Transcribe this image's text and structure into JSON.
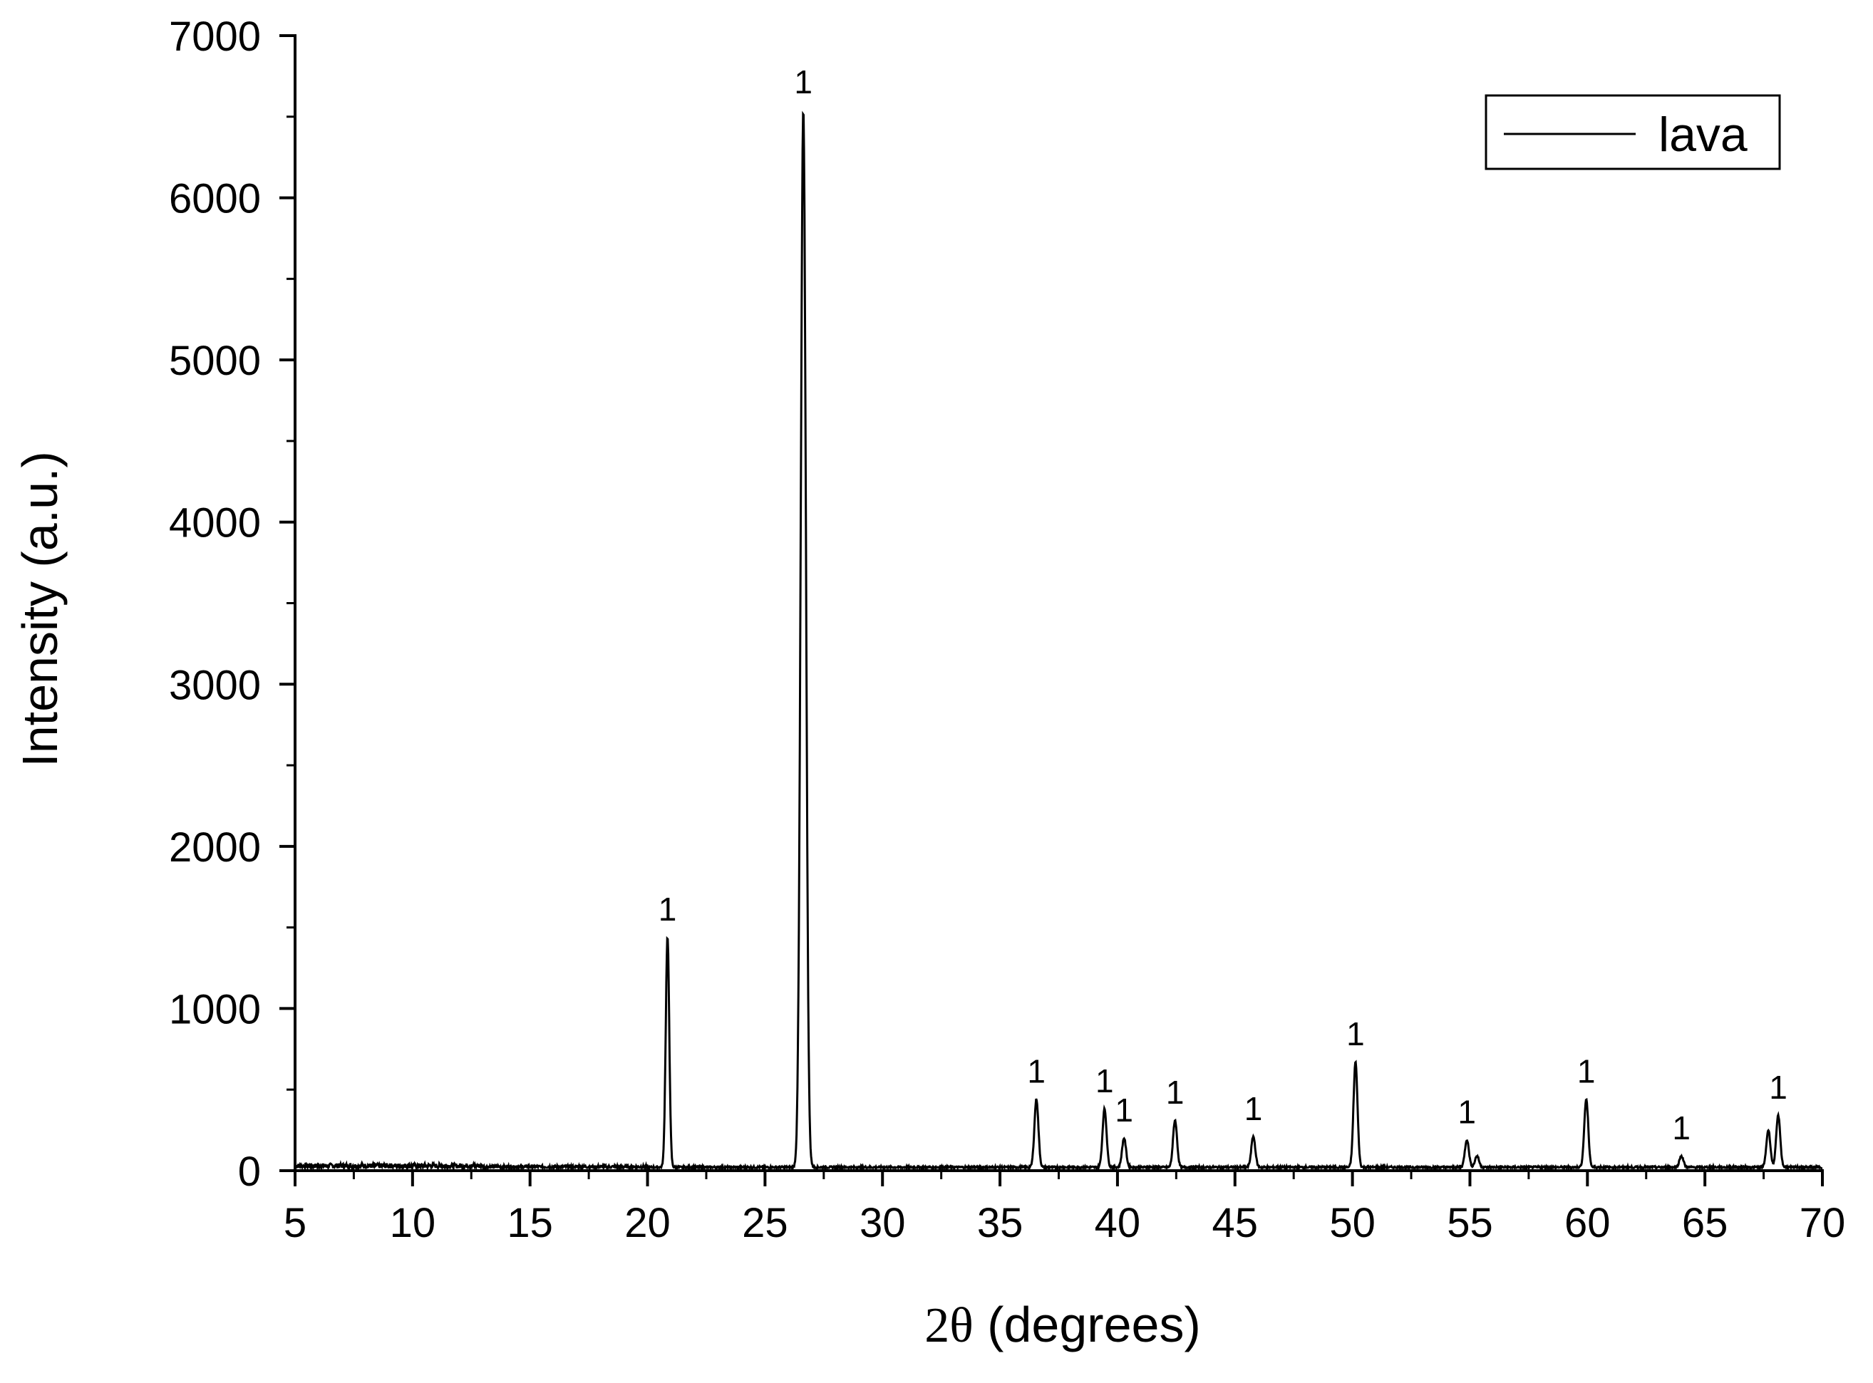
{
  "chart_data": {
    "type": "line",
    "xlabel_symbol": "2θ",
    "xlabel_rest": " (degrees)",
    "ylabel": "Intensity (a.u.)",
    "xlim": [
      5,
      70
    ],
    "ylim": [
      0,
      7000
    ],
    "x_ticks": [
      5,
      10,
      15,
      20,
      25,
      30,
      35,
      40,
      45,
      50,
      55,
      60,
      65,
      70
    ],
    "y_ticks": [
      0,
      1000,
      2000,
      3000,
      4000,
      5000,
      6000,
      7000
    ],
    "legend": {
      "position": "top-right",
      "entries": [
        "lava"
      ]
    },
    "grid": false,
    "series": [
      {
        "name": "lava",
        "color": "#000000",
        "baseline": 15,
        "peaks": [
          {
            "x": 20.85,
            "y": 1420,
            "label": "1"
          },
          {
            "x": 26.63,
            "y": 6520,
            "label": "1"
          },
          {
            "x": 36.55,
            "y": 420,
            "label": "1"
          },
          {
            "x": 39.45,
            "y": 360,
            "label": "1"
          },
          {
            "x": 40.28,
            "y": 180,
            "label": "1"
          },
          {
            "x": 42.45,
            "y": 290,
            "label": "1"
          },
          {
            "x": 45.78,
            "y": 190,
            "label": "1"
          },
          {
            "x": 50.13,
            "y": 650,
            "label": "1"
          },
          {
            "x": 54.87,
            "y": 170,
            "label": "1"
          },
          {
            "x": 55.3,
            "y": 70,
            "label": ""
          },
          {
            "x": 59.95,
            "y": 420,
            "label": "1"
          },
          {
            "x": 64.0,
            "y": 70,
            "label": "1"
          },
          {
            "x": 67.7,
            "y": 230,
            "label": ""
          },
          {
            "x": 68.12,
            "y": 320,
            "label": "1"
          }
        ]
      }
    ]
  }
}
